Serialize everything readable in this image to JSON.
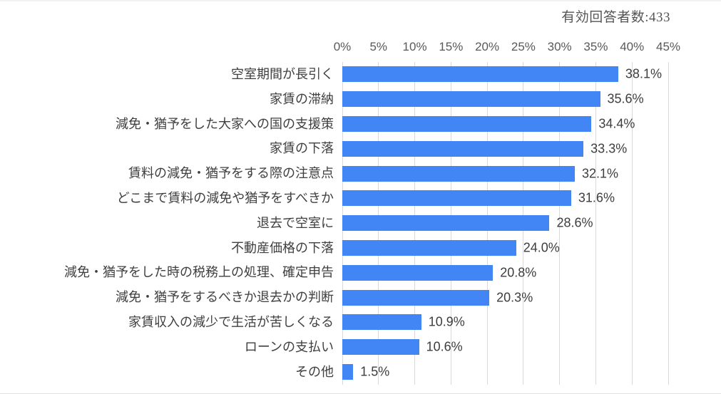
{
  "header": {
    "respondents_label": "有効回答者数:433"
  },
  "chart_data": {
    "type": "bar",
    "orientation": "horizontal",
    "title": "",
    "annotation": "有効回答者数:433",
    "categories": [
      "空室期間が長引く",
      "家賃の滞納",
      "減免・猶予をした大家への国の支援策",
      "家賃の下落",
      "賃料の減免・猶予をする際の注意点",
      "どこまで賃料の減免や猶予をすべきか",
      "退去で空室に",
      "不動産価格の下落",
      "減免・猶予をした時の税務上の処理、確定申告",
      "減免・猶予をするべきか退去かの判断",
      "家賃収入の減少で生活が苦しくなる",
      "ローンの支払い",
      "その他"
    ],
    "values": [
      38.1,
      35.6,
      34.4,
      33.3,
      32.1,
      31.6,
      28.6,
      24.0,
      20.8,
      20.3,
      10.9,
      10.6,
      1.5
    ],
    "value_labels": [
      "38.1%",
      "35.6%",
      "34.4%",
      "33.3%",
      "32.1%",
      "31.6%",
      "28.6%",
      "24.0%",
      "20.8%",
      "20.3%",
      "10.9%",
      "10.6%",
      "1.5%"
    ],
    "xlabel": "",
    "ylabel": "",
    "xlim": [
      0,
      45
    ],
    "x_ticks": [
      "0%",
      "5%",
      "10%",
      "15%",
      "20%",
      "25%",
      "30%",
      "35%",
      "40%",
      "45%"
    ],
    "grid": true,
    "axis_position": "top",
    "legend": "none",
    "colors": {
      "bar": "#4285F4",
      "gridline": "#d9d9d9",
      "tick_text": "#595959",
      "label_text": "#3f3f3f",
      "annotation_text": "#555555"
    }
  }
}
